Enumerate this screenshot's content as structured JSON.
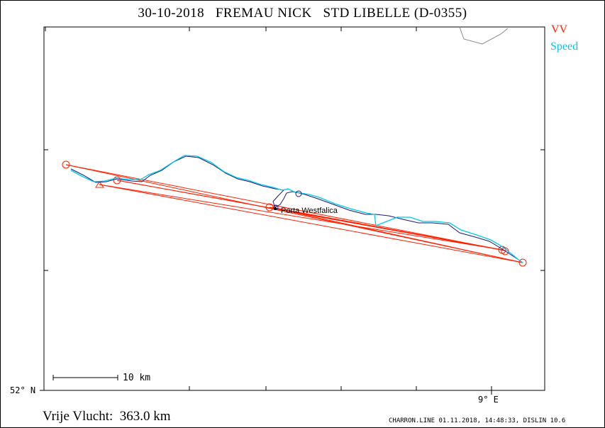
{
  "title": "30-10-2018   FREMAU NICK   STD LIBELLE (D-0355)",
  "legend": {
    "vv": "VV",
    "speed": "Speed"
  },
  "axis": {
    "lat_label": "52° N",
    "lon_label": "9° E"
  },
  "scale": {
    "label": "10 km"
  },
  "town": {
    "name": "Porta Westfalica"
  },
  "flight": {
    "distance_label": "Vrije Vlucht:  363.0 km"
  },
  "footer": "CHARRON.LINE 01.11.2018, 14:48:33, DISLIN 10.6",
  "colors": {
    "task": "#ff2000",
    "speed": "#00c8e8",
    "vv": "#1a1a80",
    "border": "#8a8a8a"
  }
}
